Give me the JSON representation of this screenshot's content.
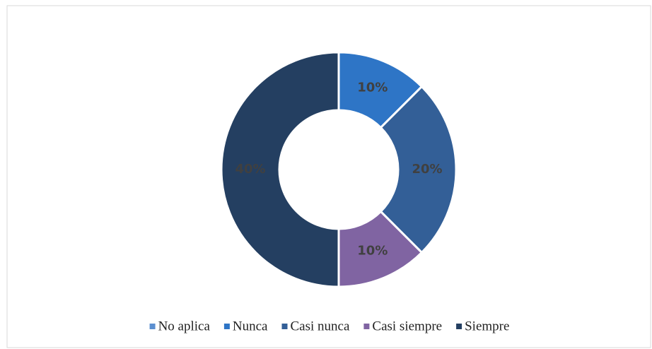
{
  "chart_data": {
    "type": "donut",
    "categories": [
      "No aplica",
      "Nunca",
      "Casi nunca",
      "Casi siempre",
      "Siempre"
    ],
    "values": [
      0,
      10,
      20,
      10,
      40
    ],
    "value_labels": [
      null,
      "10%",
      "20%",
      "10%",
      "40%"
    ],
    "colors": [
      "#5b8fd0",
      "#2e75c6",
      "#335f97",
      "#8064a2",
      "#243f61"
    ],
    "legend": "bottom"
  }
}
